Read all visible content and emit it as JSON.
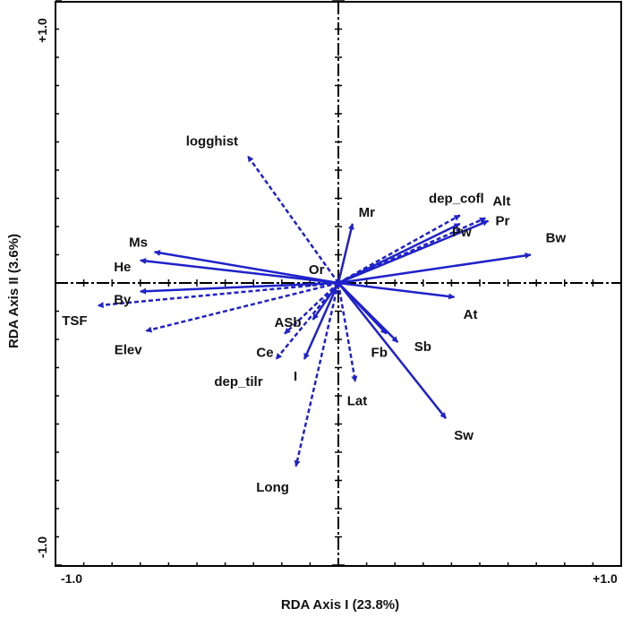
{
  "chart_data": {
    "type": "biplot",
    "xlabel": "RDA Axis I (23.8%)",
    "ylabel": "RDA Axis II (3.6%)",
    "xlim": [
      -1.0,
      1.0
    ],
    "ylim": [
      -1.0,
      1.0
    ],
    "x_tick_labels": {
      "min": "-1.0",
      "max": "+1.0"
    },
    "y_tick_labels": {
      "min": "-1.0",
      "max": "+1.0"
    },
    "grid": false,
    "arrow_color": "#1f22c8",
    "species": [
      {
        "label": "Bw",
        "x": 0.68,
        "y": 0.1
      },
      {
        "label": "Pr",
        "x": 0.53,
        "y": 0.22
      },
      {
        "label": "Pw",
        "x": 0.43,
        "y": 0.21
      },
      {
        "label": "Mr",
        "x": 0.05,
        "y": 0.21
      },
      {
        "label": "At",
        "x": 0.41,
        "y": -0.05
      },
      {
        "label": "Sb",
        "x": 0.21,
        "y": -0.21
      },
      {
        "label": "Fb",
        "x": 0.17,
        "y": -0.18
      },
      {
        "label": "Sw",
        "x": 0.38,
        "y": -0.48
      },
      {
        "label": "Ms",
        "x": -0.65,
        "y": 0.11
      },
      {
        "label": "He",
        "x": -0.7,
        "y": 0.08
      },
      {
        "label": "By",
        "x": -0.7,
        "y": -0.03
      },
      {
        "label": "ASb",
        "x": -0.09,
        "y": -0.13
      },
      {
        "label": "I",
        "x": -0.12,
        "y": -0.27
      }
    ],
    "environment": [
      {
        "label": "logghist",
        "x": -0.32,
        "y": 0.45
      },
      {
        "label": "Alt",
        "x": 0.52,
        "y": 0.23
      },
      {
        "label": "dep_cofl",
        "x": 0.43,
        "y": 0.24
      },
      {
        "label": "Or",
        "x": -0.02,
        "y": 0.0
      },
      {
        "label": "TSF",
        "x": -0.85,
        "y": -0.08
      },
      {
        "label": "Elev",
        "x": -0.68,
        "y": -0.17
      },
      {
        "label": "Ce",
        "x": -0.19,
        "y": -0.18
      },
      {
        "label": "dep_tilr",
        "x": -0.22,
        "y": -0.27
      },
      {
        "label": "Lat",
        "x": 0.06,
        "y": -0.35
      },
      {
        "label": "Long",
        "x": -0.15,
        "y": -0.65
      }
    ]
  }
}
